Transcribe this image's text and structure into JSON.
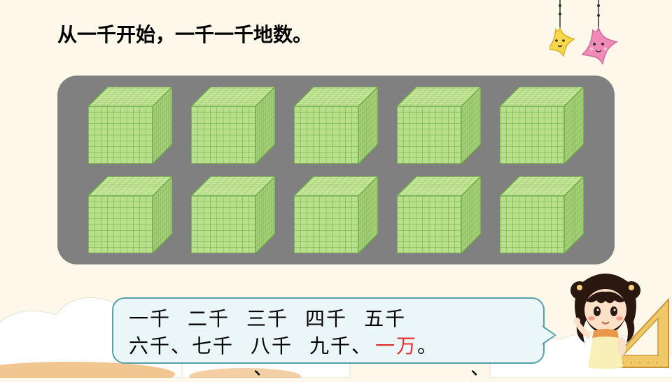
{
  "title": "从一千开始，一千一千地数。",
  "cubes": {
    "rows": 2,
    "cols": 5,
    "face_color": "#b8e08a",
    "grid_color": "#6ca84a",
    "top_color": "#c8e89a",
    "side_color": "#a8d078"
  },
  "panel": {
    "background": "#808080",
    "border_radius": 28
  },
  "speech": {
    "line1": [
      "一千",
      "二千",
      "三千",
      "四千",
      "五千"
    ],
    "line2_part1": "六千、七千",
    "line2_part2": "八千",
    "line2_part3": "九千、",
    "line2_wan": "一万",
    "line2_end": "。",
    "wan_color": "#e03030",
    "bg_color": "#eaf6f8",
    "border_color": "#5aa0a8"
  },
  "extra_commas": "、　　、",
  "stars": {
    "yellow": "#f8d84a",
    "pink": "#f08ab8",
    "outline": "#333"
  },
  "ruler": {
    "fill": "#f0c868",
    "stroke": "#c89838"
  },
  "girl_colors": {
    "hair": "#2a1810",
    "skin": "#fde0c8",
    "dress": "#f8f0b8",
    "collar": "#e89848",
    "blush": "#f8a088"
  }
}
